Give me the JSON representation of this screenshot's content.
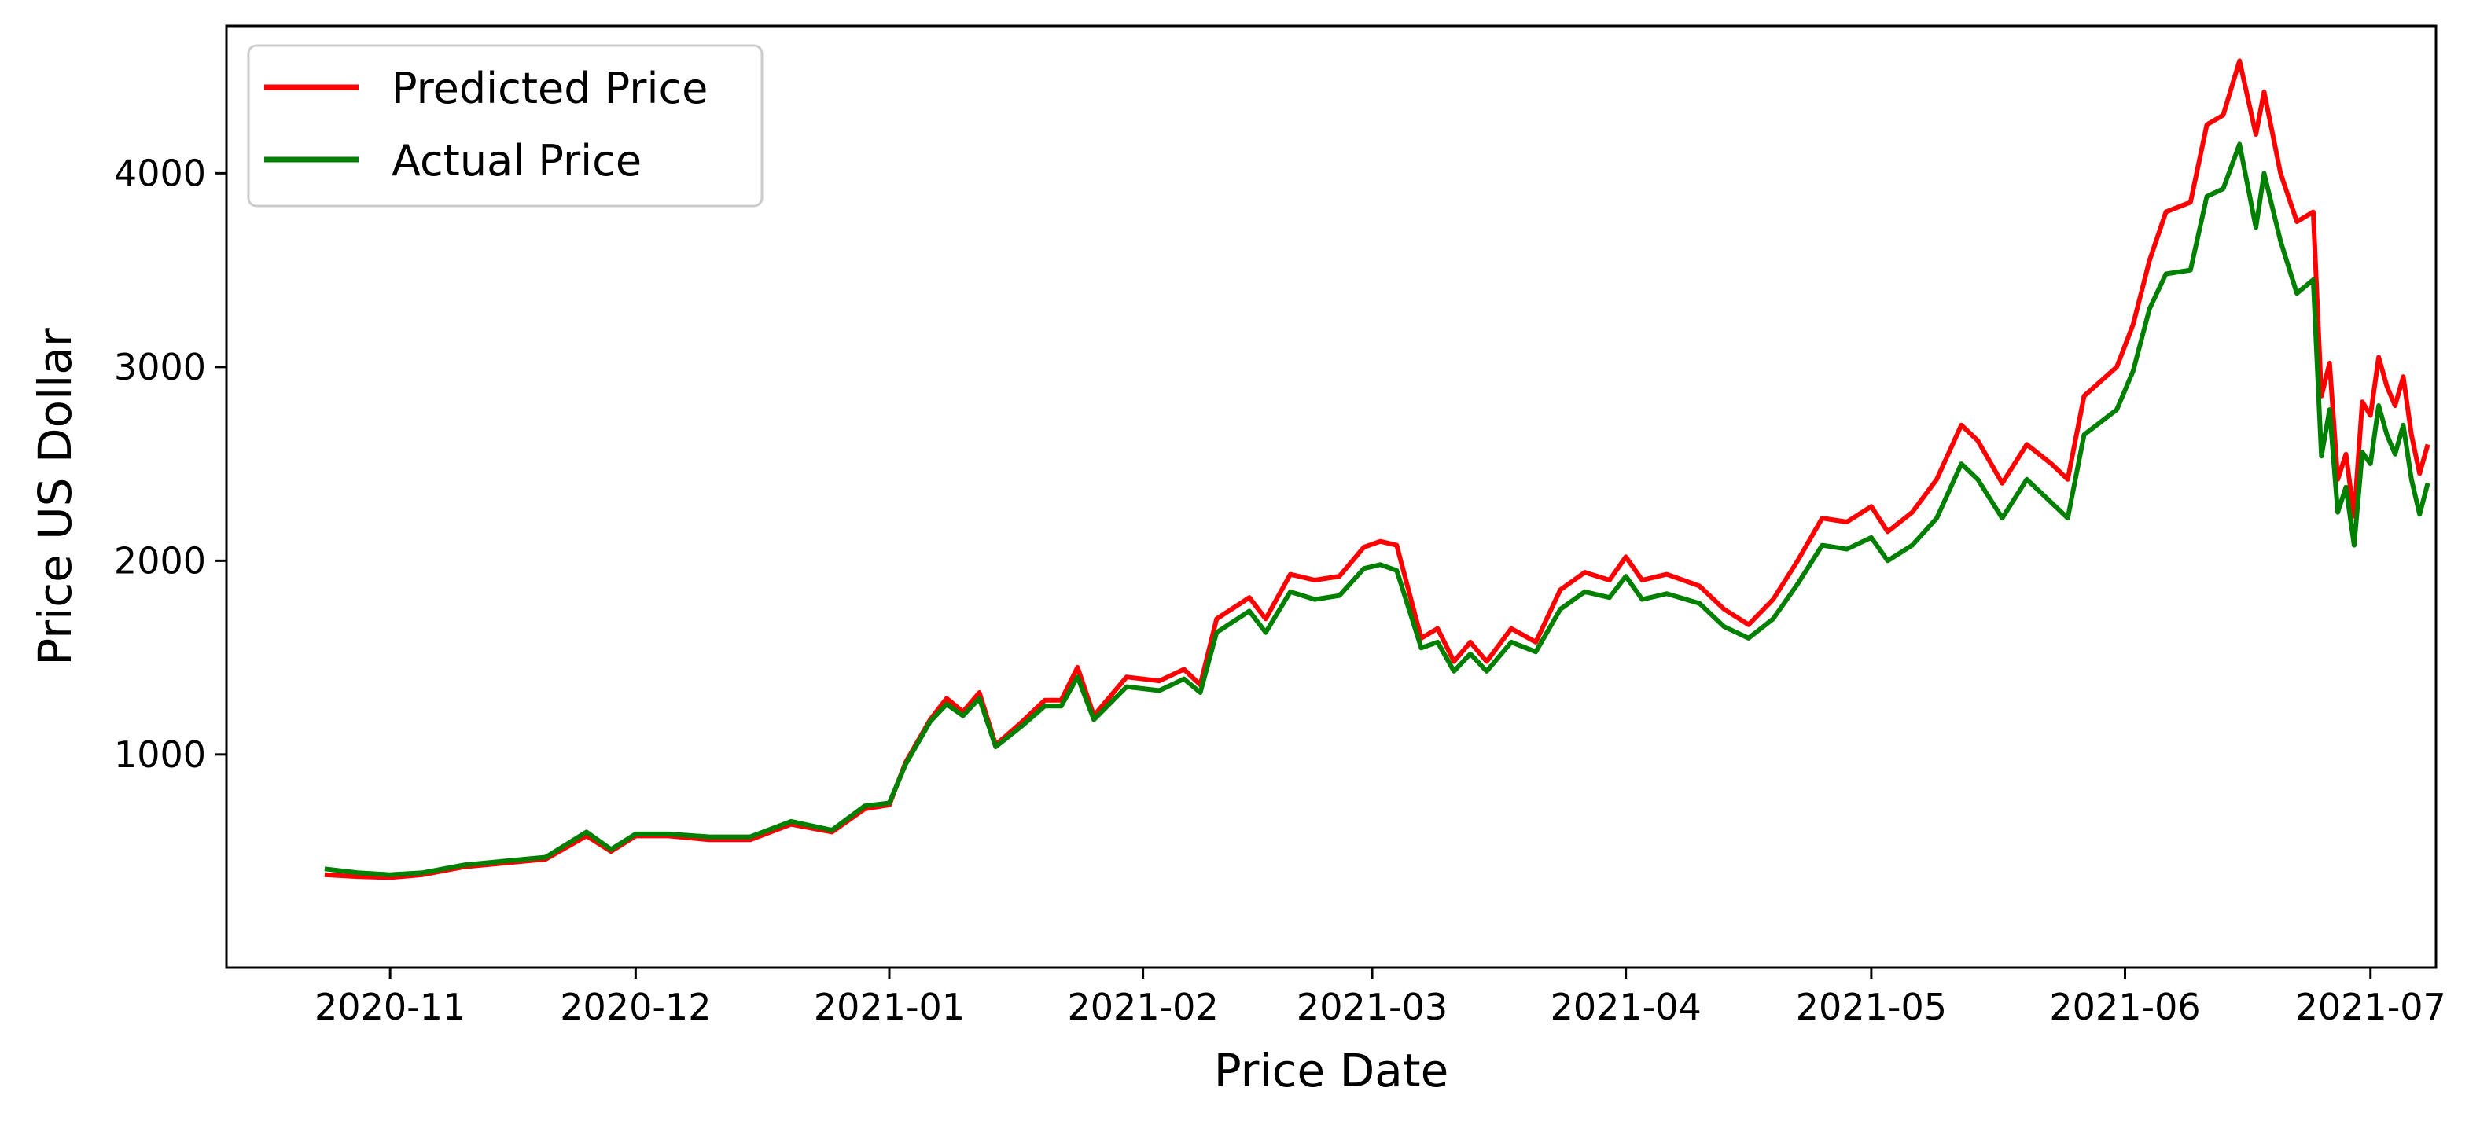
{
  "chart_data": {
    "type": "line",
    "title": "",
    "xlabel": "Price Date",
    "ylabel": "Price US Dollar",
    "xlim": [
      "2020-10-12",
      "2021-07-09"
    ],
    "ylim": [
      -100,
      4760
    ],
    "grid": false,
    "legend_position": "top-left",
    "xticks": [
      "2020-11",
      "2020-12",
      "2021-01",
      "2021-02",
      "2021-03",
      "2021-04",
      "2021-05",
      "2021-06",
      "2021-07"
    ],
    "yticks": [
      1000,
      2000,
      3000,
      4000
    ],
    "series": [
      {
        "name": "Predicted Price",
        "color": "#ff0000",
        "points": [
          [
            "2020-10-24",
            380
          ],
          [
            "2020-10-28",
            370
          ],
          [
            "2020-11-01",
            365
          ],
          [
            "2020-11-05",
            380
          ],
          [
            "2020-11-10",
            420
          ],
          [
            "2020-11-15",
            440
          ],
          [
            "2020-11-20",
            460
          ],
          [
            "2020-11-25",
            580
          ],
          [
            "2020-11-28",
            500
          ],
          [
            "2020-12-01",
            580
          ],
          [
            "2020-12-05",
            580
          ],
          [
            "2020-12-10",
            560
          ],
          [
            "2020-12-15",
            560
          ],
          [
            "2020-12-20",
            640
          ],
          [
            "2020-12-25",
            600
          ],
          [
            "2020-12-29",
            720
          ],
          [
            "2021-01-01",
            740
          ],
          [
            "2021-01-03",
            960
          ],
          [
            "2021-01-06",
            1180
          ],
          [
            "2021-01-08",
            1290
          ],
          [
            "2021-01-10",
            1220
          ],
          [
            "2021-01-12",
            1320
          ],
          [
            "2021-01-14",
            1050
          ],
          [
            "2021-01-17",
            1160
          ],
          [
            "2021-01-20",
            1280
          ],
          [
            "2021-01-22",
            1280
          ],
          [
            "2021-01-24",
            1450
          ],
          [
            "2021-01-26",
            1200
          ],
          [
            "2021-01-30",
            1400
          ],
          [
            "2021-02-03",
            1380
          ],
          [
            "2021-02-06",
            1440
          ],
          [
            "2021-02-08",
            1360
          ],
          [
            "2021-02-10",
            1700
          ],
          [
            "2021-02-14",
            1810
          ],
          [
            "2021-02-16",
            1700
          ],
          [
            "2021-02-19",
            1930
          ],
          [
            "2021-02-22",
            1900
          ],
          [
            "2021-02-25",
            1920
          ],
          [
            "2021-02-28",
            2070
          ],
          [
            "2021-03-02",
            2100
          ],
          [
            "2021-03-04",
            2080
          ],
          [
            "2021-03-07",
            1600
          ],
          [
            "2021-03-09",
            1650
          ],
          [
            "2021-03-11",
            1480
          ],
          [
            "2021-03-13",
            1580
          ],
          [
            "2021-03-15",
            1480
          ],
          [
            "2021-03-18",
            1650
          ],
          [
            "2021-03-21",
            1580
          ],
          [
            "2021-03-24",
            1850
          ],
          [
            "2021-03-27",
            1940
          ],
          [
            "2021-03-30",
            1900
          ],
          [
            "2021-04-01",
            2020
          ],
          [
            "2021-04-03",
            1900
          ],
          [
            "2021-04-06",
            1930
          ],
          [
            "2021-04-10",
            1870
          ],
          [
            "2021-04-13",
            1750
          ],
          [
            "2021-04-16",
            1670
          ],
          [
            "2021-04-19",
            1800
          ],
          [
            "2021-04-22",
            2000
          ],
          [
            "2021-04-25",
            2220
          ],
          [
            "2021-04-28",
            2200
          ],
          [
            "2021-05-01",
            2280
          ],
          [
            "2021-05-03",
            2150
          ],
          [
            "2021-05-06",
            2250
          ],
          [
            "2021-05-09",
            2420
          ],
          [
            "2021-05-12",
            2700
          ],
          [
            "2021-05-14",
            2620
          ],
          [
            "2021-05-17",
            2400
          ],
          [
            "2021-05-20",
            2600
          ],
          [
            "2021-05-23",
            2500
          ],
          [
            "2021-05-25",
            2420
          ],
          [
            "2021-05-27",
            2850
          ],
          [
            "2021-05-31",
            3000
          ],
          [
            "2021-06-02",
            3220
          ],
          [
            "2021-06-04",
            3550
          ],
          [
            "2021-06-06",
            3800
          ],
          [
            "2021-06-09",
            3850
          ],
          [
            "2021-06-11",
            4250
          ],
          [
            "2021-06-13",
            4300
          ],
          [
            "2021-06-15",
            4580
          ],
          [
            "2021-06-17",
            4200
          ],
          [
            "2021-06-18",
            4420
          ],
          [
            "2021-06-20",
            4000
          ],
          [
            "2021-06-22",
            3750
          ],
          [
            "2021-06-24",
            3800
          ],
          [
            "2021-06-25",
            2850
          ],
          [
            "2021-06-26",
            3020
          ],
          [
            "2021-06-27",
            2420
          ],
          [
            "2021-06-28",
            2550
          ],
          [
            "2021-06-29",
            2230
          ],
          [
            "2021-06-30",
            2820
          ],
          [
            "2021-07-01",
            2750
          ],
          [
            "2021-07-02",
            3050
          ],
          [
            "2021-07-03",
            2900
          ],
          [
            "2021-07-04",
            2800
          ],
          [
            "2021-07-05",
            2950
          ],
          [
            "2021-07-06",
            2650
          ],
          [
            "2021-07-07",
            2450
          ],
          [
            "2021-07-08",
            2600
          ]
        ]
      },
      {
        "name": "Actual Price",
        "color": "#008000",
        "points": [
          [
            "2020-10-24",
            410
          ],
          [
            "2020-10-28",
            390
          ],
          [
            "2020-11-01",
            380
          ],
          [
            "2020-11-05",
            390
          ],
          [
            "2020-11-10",
            430
          ],
          [
            "2020-11-15",
            450
          ],
          [
            "2020-11-20",
            470
          ],
          [
            "2020-11-25",
            600
          ],
          [
            "2020-11-28",
            510
          ],
          [
            "2020-12-01",
            590
          ],
          [
            "2020-12-05",
            590
          ],
          [
            "2020-12-10",
            575
          ],
          [
            "2020-12-15",
            575
          ],
          [
            "2020-12-20",
            655
          ],
          [
            "2020-12-25",
            610
          ],
          [
            "2020-12-29",
            735
          ],
          [
            "2021-01-01",
            750
          ],
          [
            "2021-01-03",
            950
          ],
          [
            "2021-01-06",
            1170
          ],
          [
            "2021-01-08",
            1260
          ],
          [
            "2021-01-10",
            1200
          ],
          [
            "2021-01-12",
            1290
          ],
          [
            "2021-01-14",
            1040
          ],
          [
            "2021-01-17",
            1140
          ],
          [
            "2021-01-20",
            1250
          ],
          [
            "2021-01-22",
            1250
          ],
          [
            "2021-01-24",
            1400
          ],
          [
            "2021-01-26",
            1180
          ],
          [
            "2021-01-30",
            1350
          ],
          [
            "2021-02-03",
            1330
          ],
          [
            "2021-02-06",
            1390
          ],
          [
            "2021-02-08",
            1320
          ],
          [
            "2021-02-10",
            1630
          ],
          [
            "2021-02-14",
            1740
          ],
          [
            "2021-02-16",
            1630
          ],
          [
            "2021-02-19",
            1840
          ],
          [
            "2021-02-22",
            1800
          ],
          [
            "2021-02-25",
            1820
          ],
          [
            "2021-02-28",
            1960
          ],
          [
            "2021-03-02",
            1980
          ],
          [
            "2021-03-04",
            1950
          ],
          [
            "2021-03-07",
            1550
          ],
          [
            "2021-03-09",
            1580
          ],
          [
            "2021-03-11",
            1430
          ],
          [
            "2021-03-13",
            1520
          ],
          [
            "2021-03-15",
            1430
          ],
          [
            "2021-03-18",
            1580
          ],
          [
            "2021-03-21",
            1530
          ],
          [
            "2021-03-24",
            1750
          ],
          [
            "2021-03-27",
            1840
          ],
          [
            "2021-03-30",
            1810
          ],
          [
            "2021-04-01",
            1920
          ],
          [
            "2021-04-03",
            1800
          ],
          [
            "2021-04-06",
            1830
          ],
          [
            "2021-04-10",
            1780
          ],
          [
            "2021-04-13",
            1660
          ],
          [
            "2021-04-16",
            1600
          ],
          [
            "2021-04-19",
            1700
          ],
          [
            "2021-04-22",
            1880
          ],
          [
            "2021-04-25",
            2080
          ],
          [
            "2021-04-28",
            2060
          ],
          [
            "2021-05-01",
            2120
          ],
          [
            "2021-05-03",
            2000
          ],
          [
            "2021-05-06",
            2080
          ],
          [
            "2021-05-09",
            2220
          ],
          [
            "2021-05-12",
            2500
          ],
          [
            "2021-05-14",
            2420
          ],
          [
            "2021-05-17",
            2220
          ],
          [
            "2021-05-20",
            2420
          ],
          [
            "2021-05-23",
            2300
          ],
          [
            "2021-05-25",
            2220
          ],
          [
            "2021-05-27",
            2650
          ],
          [
            "2021-05-31",
            2780
          ],
          [
            "2021-06-02",
            2980
          ],
          [
            "2021-06-04",
            3300
          ],
          [
            "2021-06-06",
            3480
          ],
          [
            "2021-06-09",
            3500
          ],
          [
            "2021-06-11",
            3880
          ],
          [
            "2021-06-13",
            3920
          ],
          [
            "2021-06-15",
            4150
          ],
          [
            "2021-06-17",
            3720
          ],
          [
            "2021-06-18",
            4000
          ],
          [
            "2021-06-20",
            3650
          ],
          [
            "2021-06-22",
            3380
          ],
          [
            "2021-06-24",
            3450
          ],
          [
            "2021-06-25",
            2540
          ],
          [
            "2021-06-26",
            2780
          ],
          [
            "2021-06-27",
            2250
          ],
          [
            "2021-06-28",
            2380
          ],
          [
            "2021-06-29",
            2080
          ],
          [
            "2021-06-30",
            2560
          ],
          [
            "2021-07-01",
            2500
          ],
          [
            "2021-07-02",
            2800
          ],
          [
            "2021-07-03",
            2650
          ],
          [
            "2021-07-04",
            2550
          ],
          [
            "2021-07-05",
            2700
          ],
          [
            "2021-07-06",
            2420
          ],
          [
            "2021-07-07",
            2240
          ],
          [
            "2021-07-08",
            2400
          ]
        ]
      }
    ]
  }
}
